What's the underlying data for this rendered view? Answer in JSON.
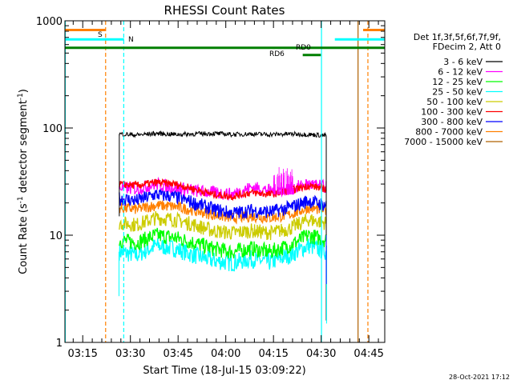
{
  "chart_data": {
    "type": "line",
    "title": "RHESSI Count Rates",
    "xlabel": "Start Time (18-Jul-15 03:09:22)",
    "ylabel_prefix": "Count Rate (s",
    "ylabel_sup": "-1",
    "ylabel_middle": " detector segment",
    "ylabel_suffix": ")",
    "yscale": "log",
    "ylim": [
      1,
      1000
    ],
    "xlim_min": [
      189.4,
      290.0
    ],
    "x_ticks": [
      {
        "t": 195,
        "label": "03:15"
      },
      {
        "t": 210,
        "label": "03:30"
      },
      {
        "t": 225,
        "label": "03:45"
      },
      {
        "t": 240,
        "label": "04:00"
      },
      {
        "t": 255,
        "label": "04:15"
      },
      {
        "t": 270,
        "label": "04:30"
      },
      {
        "t": 285,
        "label": "04:45"
      }
    ],
    "y_ticks": [
      {
        "v": 1,
        "label": "1"
      },
      {
        "v": 10,
        "label": "10"
      },
      {
        "v": 100,
        "label": "100"
      },
      {
        "v": 1000,
        "label": "1000"
      }
    ],
    "legend_header": [
      "Det 1f,3f,5f,6f,7f,9f,",
      "FDecim 2, Att 0"
    ],
    "series": [
      {
        "name": "3 - 6 keV",
        "color": "#000000",
        "x": [
          206.5,
          212,
          218,
          224,
          230,
          236,
          242,
          248,
          254,
          260,
          266,
          271.6
        ],
        "values": [
          88,
          86,
          89,
          87,
          88,
          89,
          87,
          88,
          87,
          88,
          87,
          85
        ]
      },
      {
        "name": "6 - 12 keV",
        "color": "#ff00ff",
        "x": [
          206.5,
          212,
          218,
          224,
          230,
          236,
          242,
          248,
          254,
          260,
          266,
          271.6
        ],
        "values": [
          28,
          27,
          30,
          28,
          26,
          25,
          24,
          28,
          26,
          27,
          30,
          28
        ]
      },
      {
        "name": "12 - 25 keV",
        "color": "#00ff00",
        "x": [
          206.5,
          212,
          218,
          224,
          230,
          236,
          242,
          248,
          254,
          260,
          266,
          271.6
        ],
        "values": [
          9,
          8.5,
          10,
          9.5,
          8.5,
          7.5,
          7,
          7.5,
          7,
          8,
          10,
          9
        ]
      },
      {
        "name": "25 - 50 keV",
        "color": "#00ffff",
        "x": [
          206.5,
          212,
          218,
          224,
          230,
          236,
          242,
          248,
          254,
          260,
          266,
          271.6
        ],
        "values": [
          7,
          6.5,
          8,
          7.5,
          6.5,
          5.8,
          5.5,
          6,
          5.6,
          6.5,
          8,
          7
        ]
      },
      {
        "name": "50 - 100 keV",
        "color": "#cccc00",
        "x": [
          206.5,
          212,
          218,
          224,
          230,
          236,
          242,
          248,
          254,
          260,
          266,
          271.6
        ],
        "values": [
          13,
          12.5,
          14.5,
          14,
          12.5,
          11,
          10.5,
          11,
          10.5,
          11.5,
          14,
          13
        ]
      },
      {
        "name": "100 - 300 keV",
        "color": "#ff0000",
        "x": [
          206.5,
          212,
          218,
          224,
          230,
          236,
          242,
          248,
          254,
          260,
          266,
          271.6
        ],
        "values": [
          30,
          29,
          31,
          30,
          27,
          24,
          23,
          25,
          24,
          26,
          29,
          27
        ]
      },
      {
        "name": "300 - 800 keV",
        "color": "#0000ff",
        "x": [
          206.5,
          212,
          218,
          224,
          230,
          236,
          242,
          248,
          254,
          260,
          266,
          271.6
        ],
        "values": [
          22,
          21,
          24,
          23,
          20,
          17.5,
          16,
          17,
          16.5,
          18,
          21,
          19
        ]
      },
      {
        "name": "800 - 7000 keV",
        "color": "#ff8000",
        "x": [
          206.5,
          212,
          218,
          224,
          230,
          236,
          242,
          248,
          254,
          260,
          266,
          271.6
        ],
        "values": [
          18,
          17.5,
          19,
          18.5,
          17,
          15.5,
          14.5,
          15,
          14.5,
          15.5,
          18,
          17
        ]
      },
      {
        "name": "7000 - 15000 keV",
        "color": "#b06000",
        "x": [],
        "values": []
      }
    ],
    "flag_bars": [
      {
        "label": "S",
        "color": "#ff8000",
        "y": 820,
        "segments": [
          [
            189.4,
            202.2
          ],
          [
            283.2,
            290.0
          ]
        ]
      },
      {
        "label": "N",
        "color": "#00ffff",
        "y": 670,
        "segments": [
          [
            189.4,
            208.0
          ],
          [
            274.3,
            290.0
          ]
        ]
      },
      {
        "label": "RD0",
        "color": "#007f00",
        "y": 560,
        "segments": [
          [
            189.4,
            290.0
          ]
        ]
      },
      {
        "label": "RD6",
        "color": "#007f00",
        "y": 480,
        "segments": [
          [
            264.2,
            269.9
          ]
        ]
      }
    ],
    "vertical_markers": [
      {
        "t": 189.5,
        "color": "#00ffff",
        "dashed": false
      },
      {
        "t": 202.2,
        "color": "#ff8000",
        "dashed": true
      },
      {
        "t": 207.9,
        "color": "#00ffff",
        "dashed": true
      },
      {
        "t": 270.1,
        "color": "#00ffff",
        "dashed": false
      },
      {
        "t": 281.6,
        "color": "#b06000",
        "dashed": false
      },
      {
        "t": 284.7,
        "color": "#ff8000",
        "dashed": true
      }
    ],
    "timestamp": "28-Oct-2021 17:12"
  }
}
